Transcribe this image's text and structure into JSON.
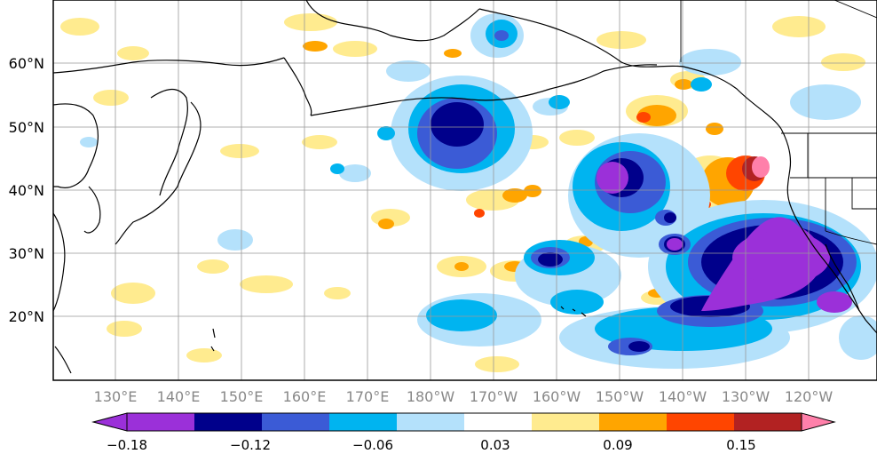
{
  "map": {
    "lat_labels": [
      "60°N",
      "50°N",
      "40°N",
      "30°N",
      "20°N"
    ],
    "lon_labels": [
      "130°E",
      "140°E",
      "150°E",
      "160°E",
      "170°E",
      "180°W",
      "170°W",
      "160°W",
      "150°W",
      "140°W",
      "130°W",
      "120°W"
    ],
    "axis_label_color": "#888888"
  },
  "colorbar": {
    "tick_labels": [
      "−0.18",
      "−0.12",
      "−0.06",
      "0.03",
      "0.09",
      "0.15"
    ],
    "colors": [
      "#9b30d9",
      "#00008b",
      "#3b5bd6",
      "#00b4f0",
      "#b4e1fb",
      "#ffffff",
      "#ffeb8f",
      "#ffa500",
      "#ff4500",
      "#b22222",
      "#ff80aa"
    ]
  },
  "palette": {
    "purple": "#9b30d9",
    "navy": "#00008b",
    "blue": "#3b5bd6",
    "cyan": "#00b4f0",
    "lightblue": "#b4e1fb",
    "yellow": "#ffeb8f",
    "orange": "#ffa500",
    "redorange": "#ff4500",
    "darkred": "#b22222",
    "pink": "#ff80aa"
  }
}
